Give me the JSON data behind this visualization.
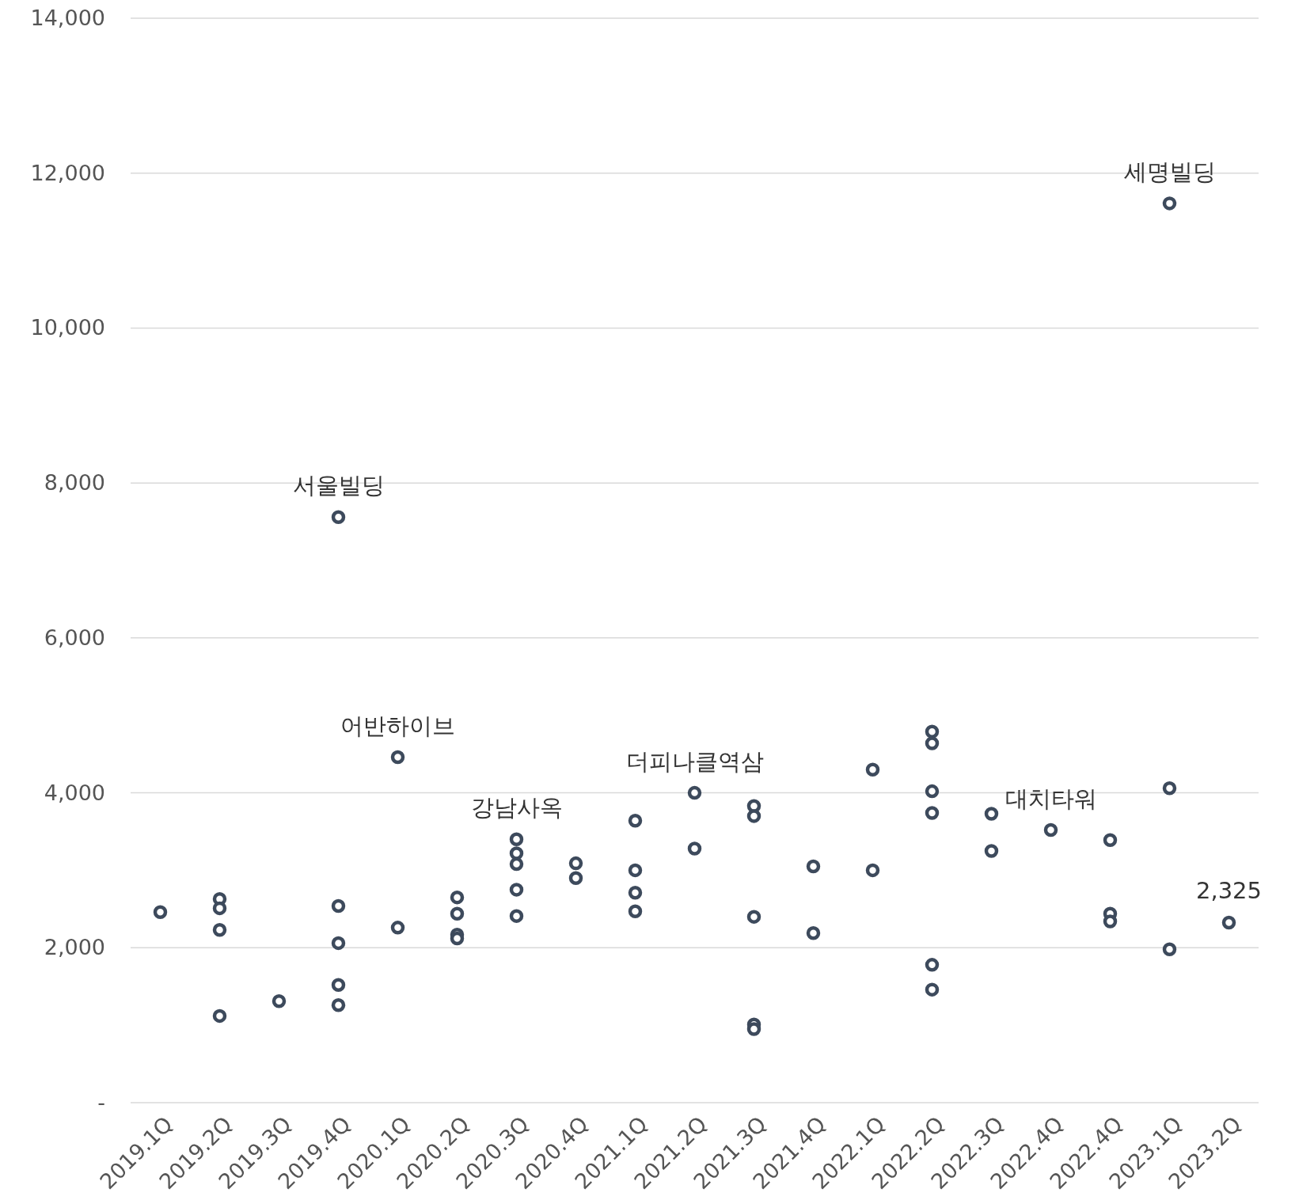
{
  "chart_data": {
    "type": "scatter",
    "marker": "circle",
    "grid": "y",
    "categories": [
      "2019.1Q",
      "2019.2Q",
      "2019.3Q",
      "2019.4Q",
      "2020.1Q",
      "2020.2Q",
      "2020.3Q",
      "2020.4Q",
      "2021.1Q",
      "2021.2Q",
      "2021.3Q",
      "2021.4Q",
      "2022.1Q",
      "2022.2Q",
      "2022.3Q",
      "2022.4Q",
      "2022.4Q",
      "2023.1Q",
      "2023.2Q"
    ],
    "ylim": [
      0,
      14000
    ],
    "yticks": [
      {
        "value": 0,
        "label": "-"
      },
      {
        "value": 2000,
        "label": "2,000"
      },
      {
        "value": 4000,
        "label": "4,000"
      },
      {
        "value": 6000,
        "label": "6,000"
      },
      {
        "value": 8000,
        "label": "8,000"
      },
      {
        "value": 10000,
        "label": "10,000"
      },
      {
        "value": 12000,
        "label": "12,000"
      },
      {
        "value": 14000,
        "label": "14,000"
      }
    ],
    "series": [
      {
        "color": "#3d4a5c",
        "values": [
          2460,
          2630,
          1310,
          7560,
          4460,
          2650,
          3400,
          3090,
          3640,
          4000,
          3830,
          3050,
          4300,
          4790,
          3730,
          3520,
          3390,
          11610,
          2325
        ],
        "value_labels": [
          null,
          null,
          null,
          "서울빌딩",
          "어반하이브",
          null,
          "강남사옥",
          null,
          null,
          "더피나클역삼",
          null,
          null,
          null,
          null,
          null,
          "대치타워",
          null,
          "세명빌딩",
          "2,325"
        ]
      },
      {
        "color": "#3d4a5c",
        "values": [
          null,
          2510,
          null,
          2540,
          2260,
          2440,
          3220,
          2900,
          3000,
          3280,
          3700,
          2190,
          3000,
          4640,
          3250,
          null,
          2440,
          4060,
          null
        ]
      },
      {
        "color": "#3d4a5c",
        "values": [
          null,
          2230,
          null,
          2060,
          null,
          2170,
          3080,
          null,
          2710,
          null,
          2400,
          null,
          null,
          4020,
          null,
          null,
          2340,
          1980,
          null
        ]
      },
      {
        "color": "#3d4a5c",
        "values": [
          null,
          1120,
          null,
          1520,
          null,
          2120,
          2750,
          null,
          2470,
          null,
          1010,
          null,
          null,
          3740,
          null,
          null,
          null,
          null,
          null
        ]
      },
      {
        "color": "#3d4a5c",
        "values": [
          null,
          null,
          null,
          1260,
          null,
          null,
          2410,
          null,
          null,
          null,
          950,
          null,
          null,
          1780,
          null,
          null,
          null,
          null,
          null
        ]
      },
      {
        "color": "#3d4a5c",
        "values": [
          null,
          null,
          null,
          null,
          null,
          null,
          null,
          null,
          null,
          null,
          null,
          null,
          null,
          1460,
          null,
          null,
          null,
          null,
          null
        ]
      }
    ]
  }
}
